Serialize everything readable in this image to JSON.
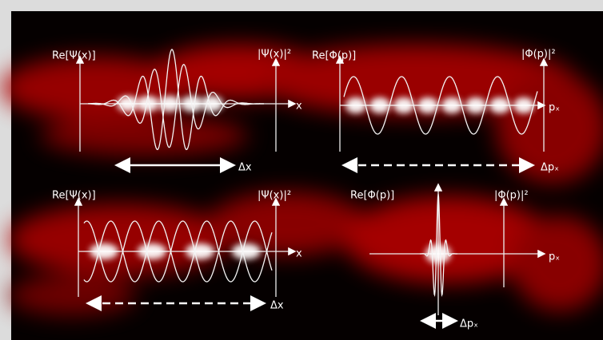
{
  "panels": [
    {
      "real_label": "Re[Ψ(x)]",
      "density_label": "|Ψ(x)|²",
      "axis_label": "x",
      "spread_label": "Δx"
    },
    {
      "real_label": "Re[Φ(p)]",
      "density_label": "|Φ(p)|²",
      "axis_label": "pₓ",
      "spread_label": "Δpₓ"
    },
    {
      "real_label": "Re[Ψ(x)]",
      "density_label": "|Ψ(x)|²",
      "axis_label": "x",
      "spread_label": "Δx"
    },
    {
      "real_label": "Re[Φ(p)]",
      "density_label": "|Φ(p)|²",
      "axis_label": "pₓ",
      "spread_label": "Δpₓ"
    }
  ]
}
